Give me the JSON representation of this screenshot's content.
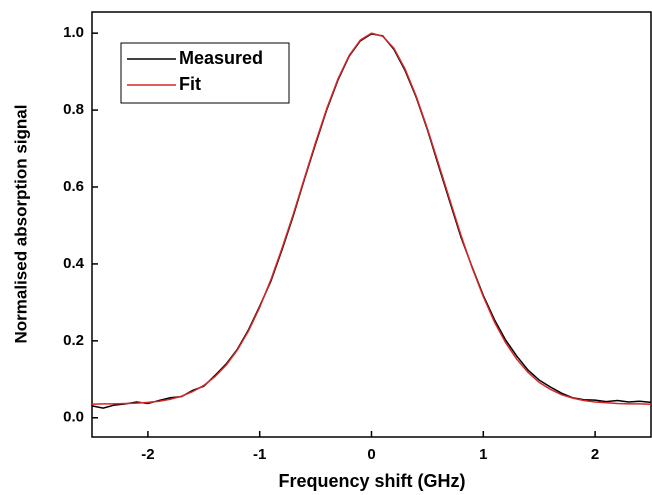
{
  "chart_data": {
    "type": "line",
    "xlabel": "Frequency shift (GHz)",
    "ylabel": "Normalised absorption signal",
    "x": [
      -2.5,
      -2.4,
      -2.3,
      -2.2,
      -2.1,
      -2.0,
      -1.9,
      -1.8,
      -1.7,
      -1.6,
      -1.5,
      -1.4,
      -1.3,
      -1.2,
      -1.1,
      -1.0,
      -0.9,
      -0.8,
      -0.7,
      -0.6,
      -0.5,
      -0.4,
      -0.3,
      -0.2,
      -0.1,
      0.0,
      0.1,
      0.2,
      0.3,
      0.4,
      0.5,
      0.6,
      0.7,
      0.8,
      0.9,
      1.0,
      1.1,
      1.2,
      1.3,
      1.4,
      1.5,
      1.6,
      1.7,
      1.8,
      1.9,
      2.0,
      2.1,
      2.2,
      2.3,
      2.4,
      2.5
    ],
    "series": [
      {
        "name": "Measured",
        "color": "#000000",
        "values": [
          0.031,
          0.025,
          0.033,
          0.036,
          0.041,
          0.037,
          0.045,
          0.052,
          0.055,
          0.071,
          0.082,
          0.11,
          0.14,
          0.178,
          0.229,
          0.29,
          0.355,
          0.437,
          0.525,
          0.62,
          0.712,
          0.801,
          0.878,
          0.94,
          0.98,
          0.998,
          0.993,
          0.958,
          0.903,
          0.833,
          0.749,
          0.655,
          0.562,
          0.47,
          0.392,
          0.318,
          0.255,
          0.202,
          0.16,
          0.124,
          0.098,
          0.08,
          0.064,
          0.052,
          0.047,
          0.046,
          0.042,
          0.045,
          0.041,
          0.043,
          0.04
        ]
      },
      {
        "name": "Fit",
        "color": "#d62728",
        "values": [
          0.035,
          0.036,
          0.036,
          0.037,
          0.038,
          0.04,
          0.043,
          0.048,
          0.056,
          0.068,
          0.084,
          0.107,
          0.137,
          0.176,
          0.226,
          0.287,
          0.359,
          0.441,
          0.529,
          0.623,
          0.716,
          0.804,
          0.881,
          0.942,
          0.982,
          1.0,
          0.992,
          0.961,
          0.907,
          0.836,
          0.752,
          0.66,
          0.567,
          0.475,
          0.39,
          0.315,
          0.249,
          0.195,
          0.152,
          0.118,
          0.092,
          0.074,
          0.06,
          0.051,
          0.045,
          0.041,
          0.039,
          0.037,
          0.036,
          0.036,
          0.035
        ]
      }
    ],
    "xlim": [
      -2.5,
      2.5
    ],
    "xticks": [
      -2,
      -1,
      0,
      1,
      2
    ],
    "ylim": [
      -0.05,
      1.055
    ],
    "yticks": [
      {
        "value": 0,
        "label": "0.0"
      },
      0.2,
      0.4,
      0.6,
      0.8,
      {
        "value": 1,
        "label": "1.0"
      }
    ],
    "grid": false,
    "legend": "upper left"
  }
}
